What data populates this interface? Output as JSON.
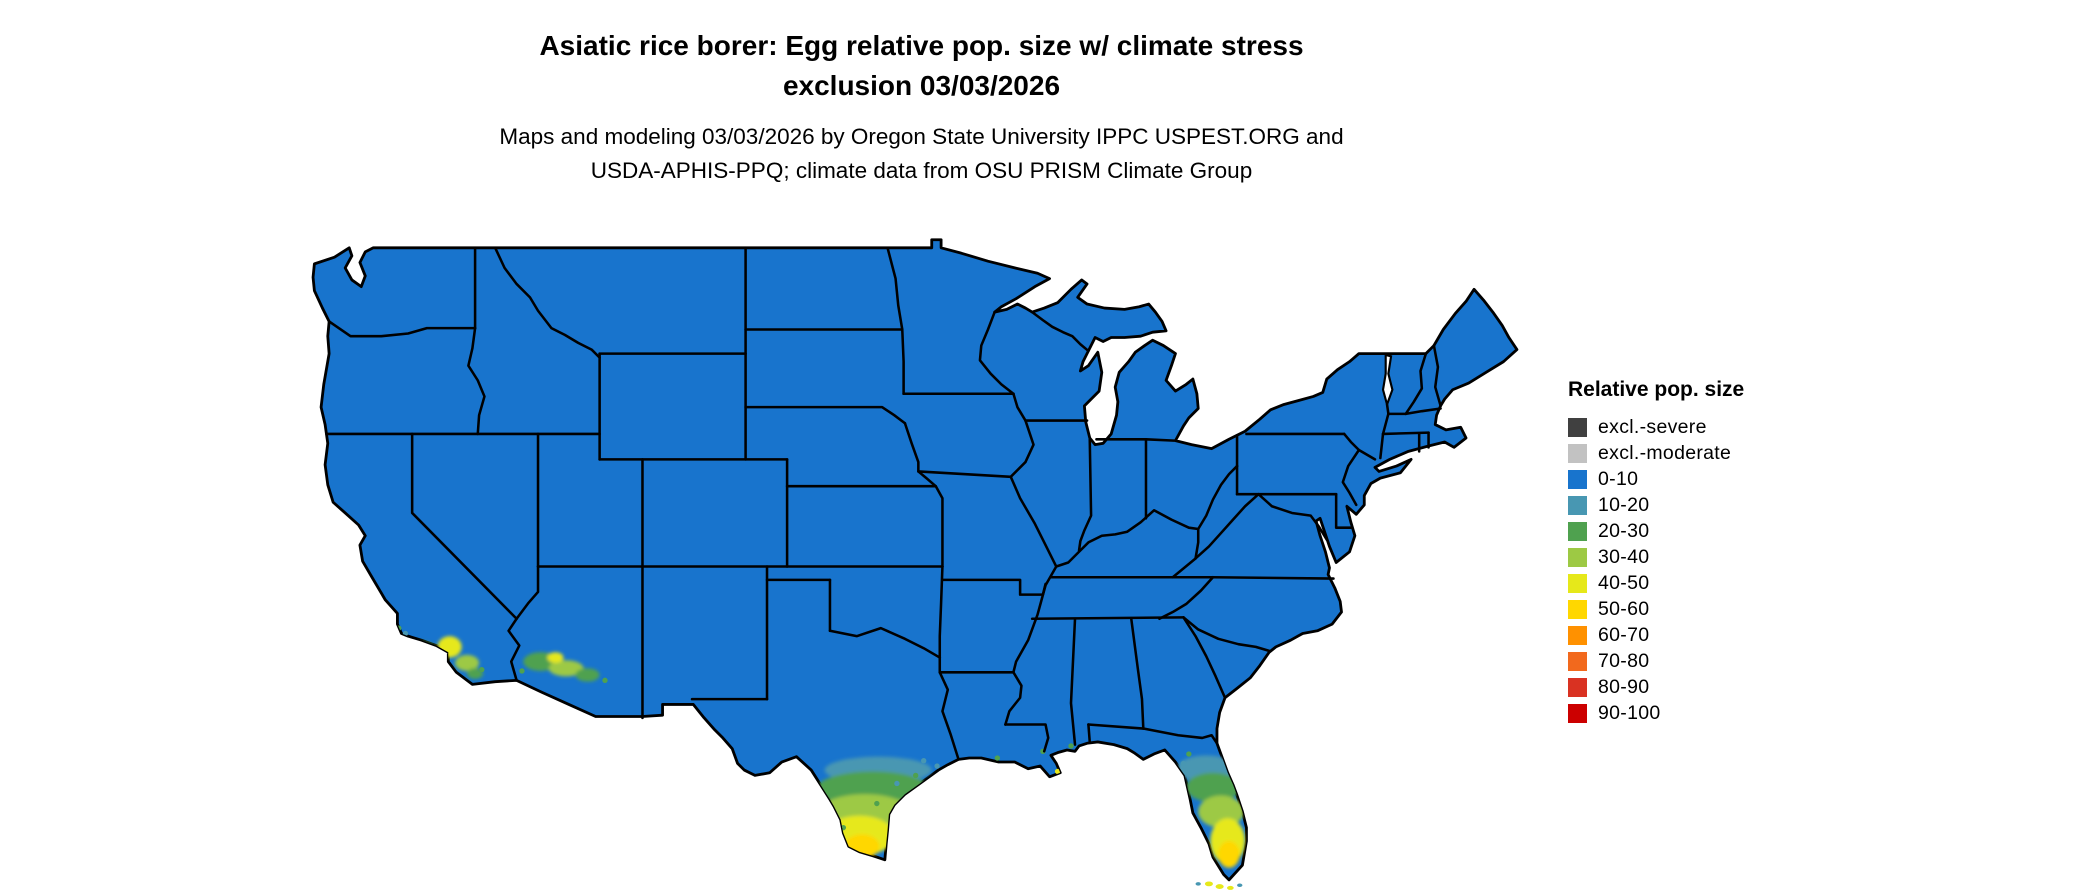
{
  "title": {
    "line1": "Asiatic rice borer: Egg relative pop. size w/ climate stress",
    "line2": "exclusion 03/03/2026"
  },
  "subtitle": {
    "line1": "Maps and modeling 03/03/2026 by Oregon State University IPPC USPEST.ORG and",
    "line2": "USDA-APHIS-PPQ; climate data from OSU PRISM Climate Group"
  },
  "legend": {
    "title": "Relative pop. size",
    "items": [
      {
        "label": "excl.-severe",
        "color": "#404040"
      },
      {
        "label": "excl.-moderate",
        "color": "#c2c2c2"
      },
      {
        "label": "0-10",
        "color": "#1874cd"
      },
      {
        "label": "10-20",
        "color": "#4897b2"
      },
      {
        "label": "20-30",
        "color": "#4fa14f"
      },
      {
        "label": "30-40",
        "color": "#9dc944"
      },
      {
        "label": "40-50",
        "color": "#e6e81a"
      },
      {
        "label": "50-60",
        "color": "#ffd700"
      },
      {
        "label": "60-70",
        "color": "#ff9100"
      },
      {
        "label": "70-80",
        "color": "#f2691d"
      },
      {
        "label": "80-90",
        "color": "#d93222"
      },
      {
        "label": "90-100",
        "color": "#cc0000"
      }
    ]
  },
  "map": {
    "base_value_label": "0-10",
    "base_fill_color": "#1874cd",
    "border_color": "#000000",
    "background_color": "#ffffff",
    "hotspot_regions": [
      "southern California coast",
      "southern Arizona",
      "southern Texas",
      "southern Florida",
      "Florida Keys"
    ]
  }
}
